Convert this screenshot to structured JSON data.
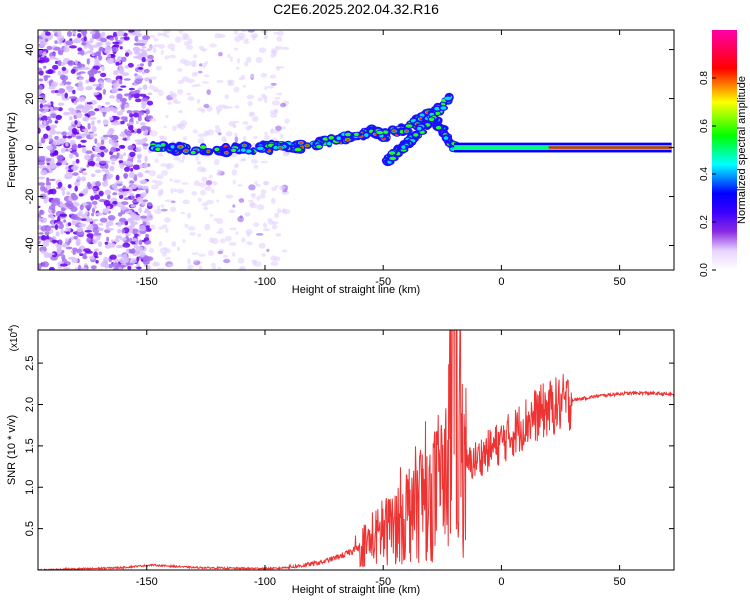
{
  "title": "C2E6.2025.202.04.32.R16",
  "colors": {
    "snr_line": "#ee3333",
    "colormap": [
      "#ffffff",
      "#d9b3ff",
      "#8a2be2",
      "#3b00ff",
      "#0000ff",
      "#00ffff",
      "#00ff00",
      "#ffff00",
      "#ff0000",
      "#ff00aa"
    ]
  },
  "chart_data": [
    {
      "type": "heatmap",
      "title": "C2E6.2025.202.04.32.R16",
      "xlabel": "Height of straight line (km)",
      "ylabel": "Frequency (Hz)",
      "xlim": [
        -196,
        73
      ],
      "ylim": [
        -50,
        48
      ],
      "xticks": [
        -150,
        -100,
        -50,
        0,
        50
      ],
      "yticks": [
        -40,
        -20,
        0,
        20,
        40
      ],
      "colorbar": {
        "label": "Normalized spectral amplitude",
        "range": [
          0,
          1
        ],
        "ticks": [
          "0.0",
          "0.2",
          "0.4",
          "0.6",
          "0.8"
        ]
      },
      "features": {
        "noise_region_x": [
          -196,
          -90
        ],
        "dense_noise_x": [
          -196,
          -148
        ],
        "signal_track": [
          {
            "x": -148,
            "f": 0
          },
          {
            "x": -120,
            "f": -1
          },
          {
            "x": -100,
            "f": 0
          },
          {
            "x": -85,
            "f": 0.5
          },
          {
            "x": -70,
            "f": 3
          },
          {
            "x": -55,
            "f": 7
          },
          {
            "x": -50,
            "f": 5
          },
          {
            "x": -40,
            "f": 8
          },
          {
            "x": -30,
            "f": 14
          },
          {
            "x": -20,
            "f": 0
          },
          {
            "x": 0,
            "f": 0
          },
          {
            "x": 20,
            "f": 0
          },
          {
            "x": 72,
            "f": 0
          }
        ],
        "branch_track": [
          {
            "x": -49,
            "f": -6
          },
          {
            "x": -42,
            "f": 0
          },
          {
            "x": -35,
            "f": 6
          },
          {
            "x": -28,
            "f": 14
          },
          {
            "x": -22,
            "f": 20
          }
        ],
        "saturated_band_x": [
          20,
          72
        ]
      }
    },
    {
      "type": "line",
      "xlabel": "Height of straight line (km)",
      "ylabel": "SNR (10 * v/v)",
      "y_multiplier": "(x10^4)",
      "xlim": [
        -196,
        73
      ],
      "ylim": [
        0,
        2.9
      ],
      "xticks": [
        -150,
        -100,
        -50,
        0,
        50
      ],
      "yticks": [
        "0.5",
        "1.0",
        "1.5",
        "2.0",
        "2.5"
      ],
      "envelope": {
        "x": [
          -196,
          -170,
          -160,
          -148,
          -130,
          -110,
          -95,
          -85,
          -75,
          -65,
          -55,
          -50,
          -45,
          -40,
          -35,
          -30,
          -25,
          -22,
          -20,
          -18,
          -15,
          -10,
          -5,
          0,
          5,
          10,
          15,
          20,
          25,
          30,
          40,
          50,
          60,
          73
        ],
        "y": [
          0.0,
          0.02,
          0.03,
          0.06,
          0.03,
          0.02,
          0.02,
          0.05,
          0.1,
          0.2,
          0.35,
          0.45,
          0.55,
          0.7,
          0.85,
          0.9,
          1.0,
          1.5,
          2.9,
          1.6,
          1.25,
          1.35,
          1.45,
          1.55,
          1.65,
          1.78,
          1.88,
          1.95,
          2.0,
          2.05,
          2.1,
          2.13,
          2.14,
          2.12
        ]
      }
    }
  ]
}
